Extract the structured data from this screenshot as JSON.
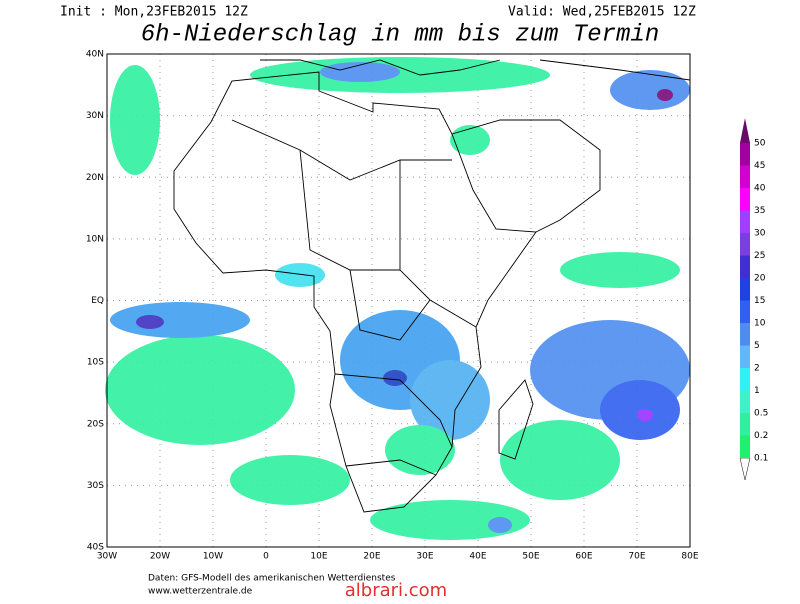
{
  "header": {
    "init": "Init : Mon,23FEB2015 12Z",
    "valid": "Valid: Wed,25FEB2015 12Z",
    "title": "6h-Niederschlag in mm bis zum Termin"
  },
  "map": {
    "lat_labels": [
      "40N",
      "30N",
      "20N",
      "10N",
      "EQ",
      "10S",
      "20S",
      "30S",
      "40S"
    ],
    "lon_labels": [
      "30W",
      "20W",
      "10W",
      "0",
      "10E",
      "20E",
      "30E",
      "40E",
      "50E",
      "60E",
      "70E",
      "80E"
    ]
  },
  "legend": {
    "labels": [
      "50",
      "45",
      "40",
      "35",
      "30",
      "25",
      "20",
      "15",
      "10",
      "5",
      "2",
      "1",
      "0.5",
      "0.2",
      "0.1"
    ]
  },
  "footer": {
    "line1": "Daten: GFS-Modell des amerikanischen Wetterdienstes",
    "line2": "www.wetterzentrale.de"
  },
  "watermark": "albrari.com"
}
